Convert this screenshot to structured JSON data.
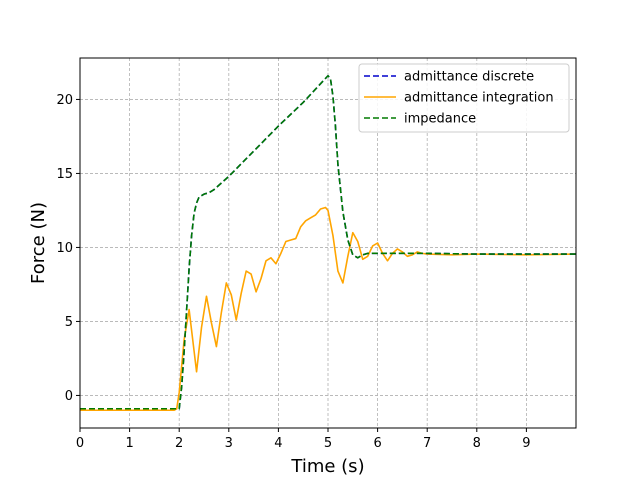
{
  "chart_data": {
    "type": "line",
    "title": "",
    "xlabel": "Time (s)",
    "ylabel": "Force (N)",
    "xlim": [
      0,
      10
    ],
    "ylim": [
      -2.2,
      22.8
    ],
    "xticks": [
      0,
      1,
      2,
      3,
      4,
      5,
      6,
      7,
      8,
      9
    ],
    "yticks": [
      0,
      5,
      10,
      15,
      20
    ],
    "grid": true,
    "legend_position": "top-right",
    "series": [
      {
        "name": "admittance discrete",
        "color": "#0000cc",
        "style": "dashed",
        "x": [
          0,
          1,
          1.95,
          2.0,
          2.05,
          2.1,
          2.15,
          2.2,
          2.25,
          2.3,
          2.35,
          2.4,
          2.5,
          2.6,
          2.7,
          3.0,
          3.5,
          4.0,
          4.5,
          5.0,
          5.05,
          5.1,
          5.15,
          5.2,
          5.3,
          5.4,
          5.5,
          5.6,
          5.7,
          5.8,
          6.0,
          7.0,
          8.0,
          9.0,
          10.0
        ],
        "y": [
          -0.9,
          -0.9,
          -0.9,
          -0.9,
          0.6,
          3.0,
          5.8,
          8.6,
          10.8,
          12.3,
          13.0,
          13.4,
          13.6,
          13.7,
          13.9,
          14.8,
          16.5,
          18.2,
          19.8,
          21.6,
          21.4,
          20.2,
          18.2,
          15.6,
          12.4,
          10.5,
          9.5,
          9.3,
          9.5,
          9.6,
          9.6,
          9.6,
          9.55,
          9.55,
          9.55
        ]
      },
      {
        "name": "admittance integration",
        "color": "#ffa500",
        "style": "solid",
        "x": [
          0,
          1,
          1.9,
          1.95,
          2.0,
          2.1,
          2.2,
          2.3,
          2.35,
          2.45,
          2.55,
          2.65,
          2.75,
          2.85,
          2.95,
          3.05,
          3.15,
          3.25,
          3.35,
          3.45,
          3.55,
          3.65,
          3.75,
          3.85,
          3.95,
          4.05,
          4.15,
          4.25,
          4.35,
          4.45,
          4.55,
          4.65,
          4.75,
          4.85,
          4.95,
          5.0,
          5.1,
          5.2,
          5.3,
          5.4,
          5.5,
          5.6,
          5.7,
          5.8,
          5.9,
          6.0,
          6.1,
          6.2,
          6.3,
          6.4,
          6.5,
          6.6,
          6.7,
          6.8,
          6.9,
          7.0,
          7.5,
          8.0,
          9.0,
          10.0
        ],
        "y": [
          -1.0,
          -1.0,
          -1.0,
          -0.9,
          0.2,
          3.8,
          5.8,
          3.0,
          1.6,
          4.6,
          6.7,
          4.9,
          3.3,
          5.6,
          7.6,
          6.8,
          5.1,
          6.9,
          8.4,
          8.2,
          7.0,
          7.9,
          9.1,
          9.3,
          8.9,
          9.6,
          10.4,
          10.5,
          10.6,
          11.4,
          11.8,
          12.0,
          12.2,
          12.6,
          12.7,
          12.5,
          10.8,
          8.4,
          7.6,
          9.4,
          11.0,
          10.4,
          9.2,
          9.4,
          10.1,
          10.3,
          9.6,
          9.1,
          9.6,
          9.9,
          9.7,
          9.4,
          9.5,
          9.7,
          9.6,
          9.55,
          9.5,
          9.55,
          9.5,
          9.55
        ]
      },
      {
        "name": "impedance",
        "color": "#007a00",
        "style": "dashed",
        "x": [
          0,
          1,
          1.95,
          2.0,
          2.05,
          2.1,
          2.15,
          2.2,
          2.25,
          2.3,
          2.35,
          2.4,
          2.5,
          2.6,
          2.7,
          3.0,
          3.5,
          4.0,
          4.5,
          5.0,
          5.05,
          5.1,
          5.15,
          5.2,
          5.3,
          5.4,
          5.5,
          5.6,
          5.7,
          5.8,
          6.0,
          7.0,
          8.0,
          9.0,
          10.0
        ],
        "y": [
          -0.9,
          -0.9,
          -0.9,
          -0.9,
          0.6,
          3.0,
          5.8,
          8.6,
          10.8,
          12.3,
          13.0,
          13.4,
          13.6,
          13.7,
          13.9,
          14.8,
          16.5,
          18.2,
          19.8,
          21.6,
          21.4,
          20.2,
          18.2,
          15.6,
          12.4,
          10.5,
          9.5,
          9.3,
          9.5,
          9.6,
          9.6,
          9.6,
          9.55,
          9.55,
          9.55
        ]
      }
    ]
  }
}
